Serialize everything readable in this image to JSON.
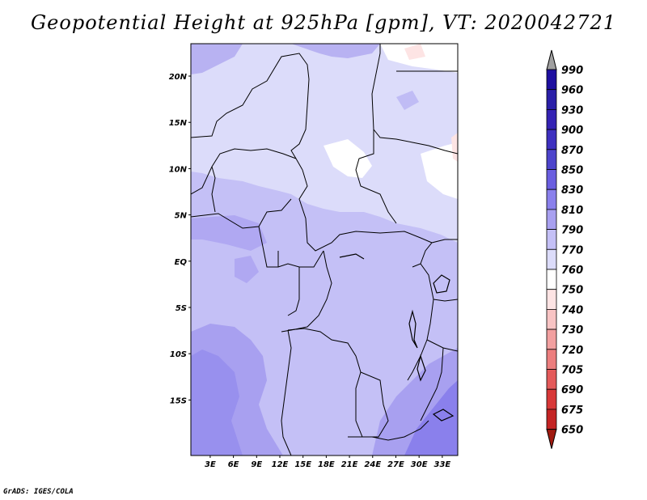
{
  "title": "Geopotential Height at 925hPa [gpm], VT: 2020042721",
  "footer": "GrADS: IGES/COLA",
  "map": {
    "lat_labels": [
      "20N",
      "15N",
      "10N",
      "5N",
      "EQ",
      "5S",
      "10S",
      "15S"
    ],
    "lon_labels": [
      "3E",
      "6E",
      "9E",
      "12E",
      "15E",
      "18E",
      "21E",
      "24E",
      "27E",
      "30E",
      "33E"
    ]
  },
  "colorbar": {
    "levels": [
      "990",
      "960",
      "930",
      "900",
      "870",
      "850",
      "830",
      "810",
      "790",
      "770",
      "760",
      "750",
      "740",
      "730",
      "720",
      "705",
      "690",
      "675",
      "650"
    ],
    "colors": [
      "#1e0fa0",
      "#2a1fa8",
      "#3422b4",
      "#3e30c0",
      "#4d44cc",
      "#6a5ee0",
      "#8a80ec",
      "#a8a0f0",
      "#c4c0f6",
      "#dcdcfa",
      "#ffffff",
      "#fde4e4",
      "#f8c4c4",
      "#f2a0a0",
      "#ec7e7e",
      "#e45a5a",
      "#d83838",
      "#c42424",
      "#a81616"
    ],
    "top_arrow_color": "#a0a0a0",
    "bottom_arrow_color": "#a01a10"
  },
  "chart_data": {
    "type": "heatmap",
    "title": "Geopotential Height at 925hPa [gpm], VT: 2020042721",
    "variable": "Geopotential Height",
    "level": "925hPa",
    "units": "gpm",
    "valid_time": "2020042721",
    "x_ticks": [
      "3E",
      "6E",
      "9E",
      "12E",
      "15E",
      "18E",
      "21E",
      "24E",
      "27E",
      "30E",
      "33E"
    ],
    "y_ticks": [
      "20N",
      "15N",
      "10N",
      "5N",
      "EQ",
      "5S",
      "10S",
      "15S"
    ],
    "xlim": [
      0,
      35
    ],
    "ylim": [
      -20,
      25
    ],
    "contour_levels": [
      650,
      675,
      690,
      705,
      720,
      730,
      740,
      750,
      760,
      770,
      790,
      810,
      830,
      850,
      870,
      900,
      930,
      960,
      990
    ]
  }
}
